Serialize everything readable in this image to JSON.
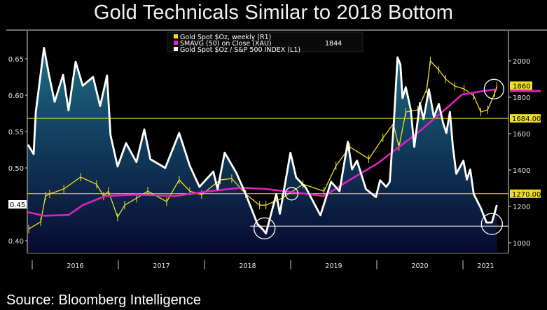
{
  "title": "Gold Technicals Similar to 2018 Bottom",
  "source": "Source: Bloomberg Intelligence",
  "chart_data": {
    "type": "line",
    "title": "Gold Technicals Similar to 2018 Bottom",
    "x_axis": {
      "type": "date",
      "range": [
        "2015-12-08",
        "2021-06-30"
      ],
      "tick_labels": [
        "2016",
        "2017",
        "2018",
        "2019",
        "2020",
        "2021"
      ]
    },
    "y_left": {
      "range": [
        0.38,
        0.67
      ],
      "tick_labels": [
        "0.40",
        "0.45",
        "0.50",
        "0.55",
        "0.60",
        "0.65"
      ],
      "ticks": [
        0.4,
        0.45,
        0.5,
        0.55,
        0.6,
        0.65
      ]
    },
    "y_right": {
      "range": [
        950,
        2100
      ],
      "tick_labels": [
        "1000",
        "1200",
        "1400",
        "1600",
        "1800",
        "2000"
      ],
      "ticks": [
        1000,
        1200,
        1400,
        1600,
        1800,
        2000
      ]
    },
    "grid": false,
    "legend": {
      "placement": "top-center",
      "entries": [
        {
          "label": "Gold Spot $Oz, weekly (R1)",
          "color": "#f0e020",
          "value": ""
        },
        {
          "label": "SMAVG (50)  on Close (XAU)",
          "color": "#e020c0",
          "value": "1844"
        },
        {
          "label": "Gold Spot $Oz / S&P 500 INDEX (L1)",
          "color": "#ffffff",
          "value": ""
        }
      ]
    },
    "series": [
      {
        "name": "Gold Spot $Oz, weekly (R1)",
        "axis": "right",
        "color": "#f0e020",
        "x": [
          "2015-12-17",
          "2016-02-06",
          "2016-02-26",
          "2016-03-15",
          "2016-05-14",
          "2016-07-24",
          "2016-09-30",
          "2016-10-30",
          "2016-11-19",
          "2016-12-28",
          "2017-01-27",
          "2017-03-18",
          "2017-05-05",
          "2017-07-24",
          "2017-09-15",
          "2017-10-30",
          "2017-12-19",
          "2018-03-09",
          "2018-04-26",
          "2018-06-24",
          "2018-08-22",
          "2018-09-18",
          "2018-11-25",
          "2019-02-22",
          "2019-05-22",
          "2019-07-12",
          "2019-09-09",
          "2019-11-28",
          "2020-01-27",
          "2020-03-11",
          "2020-04-04",
          "2020-05-03",
          "2020-06-23",
          "2020-07-31",
          "2020-08-15",
          "2020-09-20",
          "2020-10-19",
          "2020-11-27",
          "2021-01-05",
          "2021-02-15",
          "2021-03-17",
          "2021-04-15",
          "2021-05-15",
          "2021-05-24"
        ],
        "y": [
          1076,
          1115,
          1257,
          1269,
          1296,
          1361,
          1322,
          1257,
          1284,
          1141,
          1207,
          1245,
          1284,
          1226,
          1346,
          1284,
          1265,
          1346,
          1353,
          1269,
          1207,
          1207,
          1245,
          1322,
          1284,
          1423,
          1527,
          1461,
          1577,
          1654,
          1527,
          1719,
          1731,
          1846,
          2000,
          1950,
          1900,
          1861,
          1846,
          1808,
          1719,
          1731,
          1823,
          1860
        ]
      },
      {
        "name": "SMAVG (50)  on Close (XAU)",
        "axis": "right",
        "color": "#e020c0",
        "x": [
          "2015-12-14",
          "2016-02-20",
          "2016-06-03",
          "2016-08-02",
          "2016-11-05",
          "2017-03-18",
          "2017-08-28",
          "2018-01-24",
          "2018-06-06",
          "2018-09-18",
          "2019-05-22",
          "2019-09-09",
          "2020-01-06",
          "2020-04-04",
          "2020-07-02",
          "2020-10-28",
          "2020-12-27",
          "2021-03-26",
          "2021-05-24"
        ],
        "y": [
          1169,
          1149,
          1153,
          1207,
          1257,
          1265,
          1257,
          1284,
          1303,
          1296,
          1257,
          1346,
          1438,
          1527,
          1615,
          1746,
          1815,
          1834,
          1844
        ]
      },
      {
        "name": "Gold Spot $Oz / S&P 500 INDEX (L1)",
        "axis": "left",
        "color": "#ffffff",
        "x": [
          "2015-12-14",
          "2016-01-07",
          "2016-01-16",
          "2016-02-20",
          "2016-03-12",
          "2016-04-05",
          "2016-05-11",
          "2016-06-03",
          "2016-07-03",
          "2016-08-02",
          "2016-09-15",
          "2016-10-15",
          "2016-11-13",
          "2016-11-28",
          "2016-12-28",
          "2017-02-02",
          "2017-03-18",
          "2017-04-20",
          "2017-05-16",
          "2017-07-18",
          "2017-09-15",
          "2017-10-30",
          "2017-12-10",
          "2018-02-07",
          "2018-02-25",
          "2018-03-27",
          "2018-05-16",
          "2018-06-24",
          "2018-08-13",
          "2018-09-06",
          "2018-09-18",
          "2018-11-01",
          "2018-11-16",
          "2018-12-31",
          "2019-01-24",
          "2019-03-06",
          "2019-05-07",
          "2019-06-21",
          "2019-07-27",
          "2019-08-31",
          "2019-09-18",
          "2019-10-09",
          "2019-11-16",
          "2019-12-28",
          "2020-01-15",
          "2020-02-10",
          "2020-02-25",
          "2020-03-14",
          "2020-03-29",
          "2020-04-10",
          "2020-04-19",
          "2020-05-03",
          "2020-05-24",
          "2020-06-08",
          "2020-07-02",
          "2020-07-17",
          "2020-08-09",
          "2020-08-30",
          "2020-09-20",
          "2020-10-08",
          "2020-10-22",
          "2020-11-06",
          "2020-11-18",
          "2020-12-03",
          "2021-01-02",
          "2021-01-17",
          "2021-01-31",
          "2021-02-15",
          "2021-03-17",
          "2021-04-10",
          "2021-05-03",
          "2021-05-24"
        ],
        "y": [
          0.532,
          0.519,
          0.577,
          0.665,
          0.628,
          0.591,
          0.628,
          0.579,
          0.646,
          0.613,
          0.625,
          0.585,
          0.627,
          0.545,
          0.502,
          0.534,
          0.508,
          0.553,
          0.512,
          0.5,
          0.548,
          0.503,
          0.474,
          0.495,
          0.471,
          0.521,
          0.493,
          0.464,
          0.423,
          0.415,
          0.41,
          0.464,
          0.437,
          0.521,
          0.487,
          0.473,
          0.435,
          0.481,
          0.468,
          0.536,
          0.498,
          0.51,
          0.471,
          0.46,
          0.483,
          0.474,
          0.481,
          0.567,
          0.652,
          0.642,
          0.596,
          0.611,
          0.58,
          0.529,
          0.589,
          0.567,
          0.608,
          0.57,
          0.588,
          0.562,
          0.548,
          0.577,
          0.531,
          0.492,
          0.51,
          0.484,
          0.498,
          0.464,
          0.445,
          0.425,
          0.425,
          0.449
        ]
      }
    ],
    "reference_lines": [
      {
        "axis": "right",
        "value": 1684,
        "label": "1684.00",
        "color": "#f0e020"
      },
      {
        "axis": "right",
        "value": 1270,
        "label": "1270.00",
        "color": "#f0e020"
      },
      {
        "axis": "left",
        "value": 0.42,
        "label": "",
        "color": "#b0b0b0"
      }
    ],
    "last_value_tags": [
      {
        "axis": "right",
        "value": 1860,
        "label": "1860",
        "color": "#f0e020"
      },
      {
        "axis": "right",
        "value": 1844,
        "label": "",
        "color": "#e020c0"
      },
      {
        "axis": "left",
        "value": 0.45,
        "label": "0.45",
        "color": "#ffffff"
      }
    ],
    "annotations": [
      {
        "type": "circle",
        "x": "2018-09-12",
        "axis": "left",
        "y": 0.417
      },
      {
        "type": "circle",
        "x": "2019-01-05",
        "axis": "right",
        "y": 1270
      },
      {
        "type": "circle",
        "x": "2021-05-03",
        "axis": "left",
        "y": 0.423
      },
      {
        "type": "circle",
        "x": "2021-05-12",
        "axis": "right",
        "y": 1845
      }
    ]
  }
}
